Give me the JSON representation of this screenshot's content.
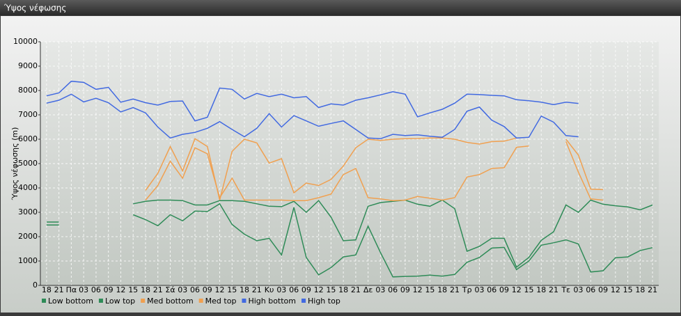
{
  "window_title": "Ύψος νέφωσης",
  "chart_data": {
    "type": "line",
    "y_label": "Ύψος νέφωσης (m)",
    "categories": [
      "18",
      "21",
      "Πα",
      "03",
      "06",
      "09",
      "12",
      "15",
      "18",
      "21",
      "Σά",
      "03",
      "06",
      "09",
      "12",
      "15",
      "18",
      "21",
      "Κυ",
      "03",
      "06",
      "09",
      "12",
      "15",
      "18",
      "21",
      "Δε",
      "03",
      "06",
      "09",
      "12",
      "15",
      "18",
      "21",
      "Τρ",
      "03",
      "06",
      "09",
      "12",
      "15",
      "18",
      "21",
      "Τε",
      "03",
      "06",
      "09",
      "12",
      "15",
      "18",
      "21"
    ],
    "ylim": [
      0,
      10000
    ],
    "yticks": [
      0,
      1000,
      2000,
      3000,
      4000,
      5000,
      6000,
      7000,
      8000,
      9000,
      10000
    ],
    "grid": true,
    "legend": "bottom",
    "series": [
      {
        "name": "Low bottom",
        "color": "#2e8b57",
        "values": [
          2480,
          2480,
          null,
          null,
          null,
          null,
          null,
          2900,
          2700,
          2450,
          2900,
          2650,
          3050,
          3030,
          3350,
          2500,
          2100,
          1830,
          1930,
          1250,
          3200,
          1150,
          430,
          730,
          1170,
          1250,
          2430,
          1350,
          350,
          370,
          380,
          420,
          380,
          450,
          950,
          1150,
          1530,
          1560,
          650,
          1000,
          1650,
          1750,
          1870,
          1700,
          550,
          600,
          1130,
          1170,
          1430,
          1550
        ]
      },
      {
        "name": "Low top",
        "color": "#2e8b57",
        "values": [
          2600,
          2600,
          null,
          null,
          null,
          null,
          null,
          3350,
          3450,
          3500,
          3500,
          3480,
          3300,
          3300,
          3480,
          3480,
          3450,
          3350,
          3250,
          3230,
          3450,
          3000,
          3480,
          2800,
          1830,
          1870,
          3250,
          3400,
          3450,
          3500,
          3330,
          3250,
          3500,
          3150,
          1400,
          1600,
          1930,
          1930,
          750,
          1150,
          1850,
          2200,
          3300,
          3000,
          3500,
          3330,
          3270,
          3220,
          3100,
          3300
        ]
      },
      {
        "name": "Med bottom",
        "color": "#f0a050",
        "values": [
          null,
          null,
          null,
          null,
          null,
          null,
          null,
          null,
          3500,
          4100,
          5100,
          4400,
          5650,
          5400,
          3600,
          4400,
          3500,
          3500,
          3500,
          3500,
          3480,
          3480,
          3600,
          3750,
          4550,
          4800,
          3600,
          3550,
          3480,
          3500,
          3650,
          3580,
          3500,
          3600,
          4450,
          4550,
          4800,
          4830,
          5670,
          5720,
          null,
          null,
          5900,
          4650,
          3550,
          3500,
          null,
          null,
          null,
          null
        ]
      },
      {
        "name": "Med top",
        "color": "#f0a050",
        "values": [
          null,
          null,
          null,
          null,
          null,
          null,
          null,
          null,
          3900,
          4600,
          5700,
          4700,
          6020,
          5700,
          3500,
          5500,
          6000,
          5850,
          5020,
          5200,
          3800,
          4200,
          4100,
          4350,
          4900,
          5650,
          6000,
          5950,
          6000,
          6020,
          6030,
          6050,
          6050,
          6000,
          5870,
          5800,
          5900,
          5920,
          6050,
          null,
          null,
          null,
          6000,
          5350,
          3950,
          3930,
          null,
          null,
          null,
          null
        ]
      },
      {
        "name": "High bottom",
        "color": "#4169e1",
        "values": [
          7480,
          7600,
          7850,
          7530,
          7680,
          7500,
          7120,
          7300,
          7080,
          6500,
          6050,
          6200,
          6280,
          6450,
          6720,
          6400,
          6100,
          6450,
          7050,
          6500,
          6970,
          6750,
          6530,
          6650,
          6750,
          6400,
          6050,
          6020,
          6200,
          6150,
          6180,
          6120,
          6080,
          6400,
          7150,
          7320,
          6780,
          6520,
          6050,
          6080,
          6950,
          6700,
          6150,
          6100,
          null,
          null,
          null,
          null,
          null,
          null
        ]
      },
      {
        "name": "High top",
        "color": "#4169e1",
        "values": [
          7780,
          7900,
          8380,
          8330,
          8050,
          8130,
          7520,
          7650,
          7500,
          7400,
          7550,
          7570,
          6750,
          6900,
          8100,
          8050,
          7650,
          7880,
          7750,
          7850,
          7700,
          7750,
          7300,
          7450,
          7400,
          7600,
          7700,
          7820,
          7950,
          7850,
          6920,
          7080,
          7230,
          7480,
          7850,
          7830,
          7800,
          7780,
          7620,
          7580,
          7520,
          7420,
          7520,
          7470,
          null,
          null,
          null,
          null,
          null,
          null
        ]
      }
    ]
  }
}
